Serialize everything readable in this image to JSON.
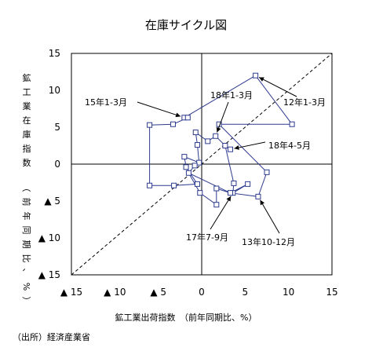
{
  "chart_data": {
    "type": "scatter",
    "title": "在庫サイクル図",
    "xlabel": "鉱工業出荷指数　（前年同期比、%）",
    "ylabel": "鉱工業在庫指数（前年同期比、%）",
    "ylabel_main": "鉱工業在庫指数",
    "ylabel_paren": "（前年同期比、%）",
    "xlim": [
      -15,
      15
    ],
    "ylim": [
      -15,
      15
    ],
    "grid": false,
    "diagonal": "45-degree dashed line",
    "x_ticks": [
      {
        "value": -15,
        "label": "▲ 15"
      },
      {
        "value": -10,
        "label": "▲ 10"
      },
      {
        "value": -5,
        "label": "▲ 5"
      },
      {
        "value": 0,
        "label": "0"
      },
      {
        "value": 5,
        "label": "5"
      },
      {
        "value": 10,
        "label": "10"
      },
      {
        "value": 15,
        "label": "15"
      }
    ],
    "y_ticks": [
      {
        "value": 15,
        "label": "15"
      },
      {
        "value": 10,
        "label": "10"
      },
      {
        "value": 5,
        "label": "5"
      },
      {
        "value": 0,
        "label": "0"
      },
      {
        "value": -5,
        "label": "▲ 5"
      },
      {
        "value": -10,
        "label": "▲ 10"
      },
      {
        "value": -15,
        "label": "▲ 15"
      }
    ],
    "points": [
      {
        "x": 10.4,
        "y": 5.4
      },
      {
        "x": 6.2,
        "y": 12.0
      },
      {
        "x": -2.0,
        "y": 6.3
      },
      {
        "x": -1.6,
        "y": 6.3
      },
      {
        "x": -3.3,
        "y": 5.4
      },
      {
        "x": -6.0,
        "y": 5.3
      },
      {
        "x": -6.0,
        "y": -2.9
      },
      {
        "x": -3.2,
        "y": -2.9
      },
      {
        "x": -0.5,
        "y": -2.7
      },
      {
        "x": -1.8,
        "y": -0.4
      },
      {
        "x": -2.0,
        "y": 1.0
      },
      {
        "x": -0.3,
        "y": 0.2
      },
      {
        "x": -0.5,
        "y": 2.6
      },
      {
        "x": -0.7,
        "y": 4.3
      },
      {
        "x": 0.7,
        "y": 3.1
      },
      {
        "x": 1.6,
        "y": 3.8
      },
      {
        "x": 2.7,
        "y": 2.5
      },
      {
        "x": 3.3,
        "y": 2.0
      },
      {
        "x": 2.7,
        "y": 2.5
      },
      {
        "x": 3.7,
        "y": -2.6
      },
      {
        "x": 3.6,
        "y": -3.9
      },
      {
        "x": 5.3,
        "y": -2.7
      },
      {
        "x": 3.3,
        "y": -3.9
      },
      {
        "x": 1.7,
        "y": -3.3
      },
      {
        "x": 1.7,
        "y": -5.5
      },
      {
        "x": -0.2,
        "y": -3.9
      },
      {
        "x": -1.5,
        "y": -1.2
      },
      {
        "x": -0.8,
        "y": -0.2
      },
      {
        "x": -1.5,
        "y": -1.2
      },
      {
        "x": 3.3,
        "y": -3.9
      },
      {
        "x": 6.5,
        "y": -4.4
      },
      {
        "x": 7.5,
        "y": -1.1
      },
      {
        "x": 2.0,
        "y": 5.4
      },
      {
        "x": 10.4,
        "y": 5.4
      }
    ],
    "annotations": [
      {
        "text": "15年1-3月",
        "x": -2.0,
        "y": 6.3
      },
      {
        "text": "18年1-3月",
        "x": 1.6,
        "y": 3.8
      },
      {
        "text": "12年1-3月",
        "x": 6.2,
        "y": 12.0
      },
      {
        "text": "18年4-5月",
        "x": 3.3,
        "y": 2.0
      },
      {
        "text": "17年7-9月",
        "x": 3.6,
        "y": -3.9
      },
      {
        "text": "13年10-12月",
        "x": 6.5,
        "y": -4.4
      }
    ]
  },
  "source": "（出所）経済産業省"
}
